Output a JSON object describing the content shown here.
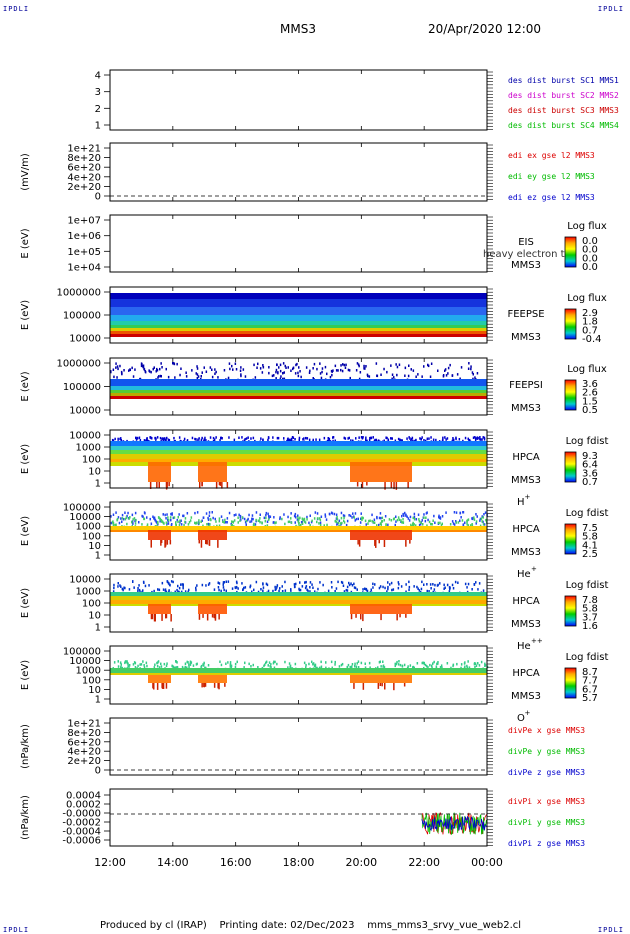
{
  "corners": {
    "tl": "IPDLI",
    "tr": "IPDLI",
    "bl": "IPDLI",
    "br": "IPDLI"
  },
  "header": {
    "spacecraft": "MMS3",
    "datetime": "20/Apr/2020 12:00"
  },
  "footer": {
    "produced": "Produced by cl (IRAP)",
    "printing": "Printing date: 02/Dec/2023",
    "file": "mms_mms3_srvy_vue_web2.cl"
  },
  "colors": {
    "mms1": "#0000aa",
    "mms2": "#cc00cc",
    "mms3": "#cc0000",
    "mms4": "#00bb00",
    "x": "#dd0000",
    "y": "#00bb00",
    "z": "#0000cc"
  },
  "chart_data": [
    {
      "id": "burst",
      "type": "line",
      "ylabel": "",
      "yticks": [
        "1",
        "2",
        "3",
        "4"
      ],
      "legend": [
        {
          "text": "des dist burst SC1 MMS1",
          "color": "#0000aa"
        },
        {
          "text": "des dist burst SC2 MMS2",
          "color": "#cc00cc"
        },
        {
          "text": "des dist burst SC3 MMS3",
          "color": "#cc0000"
        },
        {
          "text": "des dist burst SC4 MMS4",
          "color": "#00bb00"
        }
      ]
    },
    {
      "id": "edi",
      "type": "line",
      "ylabel": "(mV/m)",
      "yticks": [
        "0",
        "2e+20",
        "4e+20",
        "6e+20",
        "8e+20",
        "1e+21"
      ],
      "legend": [
        {
          "text": "edi ex gse l2 MMS3",
          "color": "#dd0000"
        },
        {
          "text": "edi ey gse l2 MMS3",
          "color": "#00bb00"
        },
        {
          "text": "edi ez gse l2 MMS3",
          "color": "#0000cc"
        }
      ]
    },
    {
      "id": "eis",
      "type": "heatmap",
      "ylabel": "E (eV)",
      "yticks": [
        "1e+04",
        "1e+05",
        "1e+06",
        "1e+07"
      ],
      "name": "EIS",
      "sc": "MMS3",
      "overlay": "heavy electron tof",
      "cbar_title": "Log flux",
      "cbar_ticks": [
        "0.0",
        "0.0",
        "0.0",
        "0.0"
      ]
    },
    {
      "id": "feepse",
      "type": "heatmap",
      "ylabel": "E (eV)",
      "yticks": [
        "10000",
        "100000",
        "1000000"
      ],
      "name": "FEEPSE",
      "sc": "MMS3",
      "cbar_title": "Log flux",
      "cbar_ticks": [
        "2.9",
        "1.8",
        "0.7",
        "-0.4"
      ]
    },
    {
      "id": "feepsi",
      "type": "heatmap",
      "ylabel": "E (eV)",
      "yticks": [
        "10000",
        "100000",
        "1000000"
      ],
      "name": "FEEPSI",
      "sc": "MMS3",
      "cbar_title": "Log flux",
      "cbar_ticks": [
        "3.6",
        "2.6",
        "1.5",
        "0.5"
      ]
    },
    {
      "id": "hpca_h",
      "type": "heatmap",
      "ylabel": "E (eV)",
      "yticks": [
        "1",
        "10",
        "100",
        "1000",
        "10000"
      ],
      "name": "HPCA",
      "sc": "MMS3",
      "species": "H",
      "charge": "+",
      "cbar_title": "Log fdist",
      "cbar_ticks": [
        "9.3",
        "6.4",
        "3.6",
        "0.7"
      ]
    },
    {
      "id": "hpca_he1",
      "type": "heatmap",
      "ylabel": "E (eV)",
      "yticks": [
        "1",
        "10",
        "100",
        "1000",
        "10000",
        "100000"
      ],
      "name": "HPCA",
      "sc": "MMS3",
      "species": "He",
      "charge": "+",
      "cbar_title": "Log fdist",
      "cbar_ticks": [
        "7.5",
        "5.8",
        "4.1",
        "2.5"
      ]
    },
    {
      "id": "hpca_he2",
      "type": "heatmap",
      "ylabel": "E (eV)",
      "yticks": [
        "1",
        "10",
        "100",
        "1000",
        "10000"
      ],
      "name": "HPCA",
      "sc": "MMS3",
      "species": "He",
      "charge": "++",
      "cbar_title": "Log fdist",
      "cbar_ticks": [
        "7.8",
        "5.8",
        "3.7",
        "1.6"
      ]
    },
    {
      "id": "hpca_o",
      "type": "heatmap",
      "ylabel": "E (eV)",
      "yticks": [
        "1",
        "10",
        "100",
        "1000",
        "10000",
        "100000"
      ],
      "name": "HPCA",
      "sc": "MMS3",
      "species": "O",
      "charge": "+",
      "cbar_title": "Log fdist",
      "cbar_ticks": [
        "8.7",
        "7.7",
        "6.7",
        "5.7"
      ]
    },
    {
      "id": "divpe",
      "type": "line",
      "ylabel": "(nPa/km)",
      "yticks": [
        "0",
        "2e+20",
        "4e+20",
        "6e+20",
        "8e+20",
        "1e+21"
      ],
      "legend": [
        {
          "text": "divPe x gse MMS3",
          "color": "#dd0000"
        },
        {
          "text": "divPe y gse MMS3",
          "color": "#00bb00"
        },
        {
          "text": "divPe z gse MMS3",
          "color": "#0000cc"
        }
      ]
    },
    {
      "id": "divpi",
      "type": "line",
      "ylabel": "(nPa/km)",
      "yticks": [
        "-0.0006",
        "-0.0004",
        "-0.0002",
        "-0.0000",
        "0.0002",
        "0.0004"
      ],
      "legend": [
        {
          "text": "divPi x gse MMS3",
          "color": "#dd0000"
        },
        {
          "text": "divPi y gse MMS3",
          "color": "#00bb00"
        },
        {
          "text": "divPi z gse MMS3",
          "color": "#0000cc"
        }
      ]
    }
  ],
  "xaxis": {
    "ticks": [
      "12:00",
      "14:00",
      "16:00",
      "18:00",
      "20:00",
      "22:00",
      "00:00"
    ]
  }
}
